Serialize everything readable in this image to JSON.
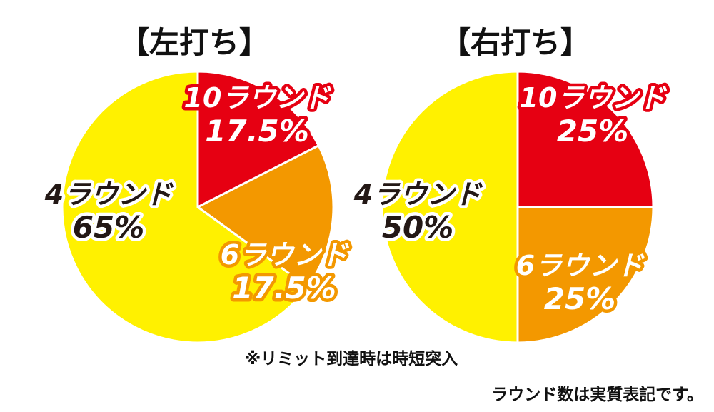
{
  "colors": {
    "round10": "#E60012",
    "round6": "#F39800",
    "round4": "#FFF100",
    "outline": "#FFFFFF",
    "label_dark": "#231815",
    "label_light": "#FFFFFF"
  },
  "chart_data": [
    {
      "type": "pie",
      "title": "【左打ち】",
      "slices": [
        {
          "label": "10ラウンド",
          "percent_label": "17.5%",
          "value": 17.5,
          "color": "#E60012"
        },
        {
          "label": "6ラウンド",
          "percent_label": "17.5%",
          "value": 17.5,
          "color": "#F39800"
        },
        {
          "label": "4ラウンド",
          "percent_label": "65%",
          "value": 65,
          "color": "#FFF100"
        }
      ]
    },
    {
      "type": "pie",
      "title": "【右打ち】",
      "slices": [
        {
          "label": "10ラウンド",
          "percent_label": "25%",
          "value": 25,
          "color": "#E60012"
        },
        {
          "label": "6ラウンド",
          "percent_label": "25%",
          "value": 25,
          "color": "#F39800"
        },
        {
          "label": "4ラウンド",
          "percent_label": "50%",
          "value": 50,
          "color": "#FFF100"
        }
      ]
    }
  ],
  "notes": {
    "limit_note": "※リミット到達時は時短突入",
    "round_note": "ラウンド数は実質表記です。"
  }
}
